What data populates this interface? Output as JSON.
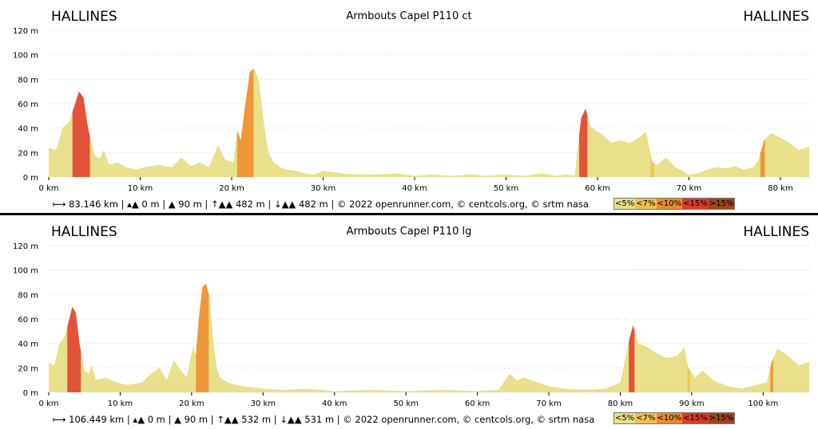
{
  "charts": [
    {
      "title": "Armbouts Capel P110 ct",
      "start_label": "HALLINES",
      "end_label": "HALLINES",
      "stats": {
        "distance": "83.146 km",
        "min_alt": "0 m",
        "max_alt": "90 m",
        "ascent": "482 m",
        "descent": "482 m",
        "credits": "© 2022 openrunner.com, © centcols.org, © srtm nasa"
      }
    },
    {
      "title": "Armbouts Capel P110 lg",
      "start_label": "HALLINES",
      "end_label": "HALLINES",
      "stats": {
        "distance": "106.449 km",
        "min_alt": "0 m",
        "max_alt": "90 m",
        "ascent": "532 m",
        "descent": "531 m",
        "credits": "© 2022 openrunner.com, © centcols.org, © srtm nasa"
      }
    }
  ],
  "legend": {
    "items": [
      "<5%",
      "<7%",
      "<10%",
      "<15%",
      ">15%"
    ],
    "colors": [
      "#e8e08a",
      "#f2c14e",
      "#ee8a2a",
      "#e03a2a",
      "#a0441c"
    ]
  },
  "chart_data": [
    {
      "type": "area",
      "title": "Armbouts Capel P110 ct",
      "xlabel": "",
      "ylabel": "",
      "x_unit": "km",
      "y_unit": "m",
      "xlim": [
        0,
        83.146
      ],
      "ylim": [
        0,
        120
      ],
      "x_ticks": [
        "0 km",
        "10 km",
        "20 km",
        "30 km",
        "40 km",
        "50 km",
        "60 km",
        "70 km",
        "80 km"
      ],
      "y_ticks": [
        "0 m",
        "20 m",
        "40 m",
        "60 m",
        "80 m",
        "100 m",
        "120 m"
      ],
      "grid": true,
      "series": [
        {
          "x": [
            0,
            0.8,
            1.5,
            2.2,
            2.8,
            3.3,
            3.8,
            4.3,
            5.0,
            5.6,
            6.0,
            6.6,
            7.5,
            8.5,
            9.5,
            10.5,
            12,
            13.5,
            14.5,
            15.5,
            16.5,
            17.5,
            18.5,
            19.3,
            20.2,
            20.6,
            21.0,
            21.5,
            22.0,
            22.5,
            23.0,
            23.5,
            24.0,
            24.6,
            25.3,
            26,
            27,
            28,
            29,
            30,
            32,
            34,
            36,
            38,
            40,
            42,
            44,
            46,
            48,
            50,
            52,
            54,
            55.5,
            56.5,
            57.5,
            58.2,
            58.7,
            59.2,
            59.8,
            60.5,
            61.5,
            62.5,
            63.5,
            64.5,
            65.3,
            66.0,
            66.5,
            67.5,
            68.5,
            69.3,
            70,
            71,
            72,
            73,
            74,
            75,
            76,
            77,
            77.6,
            78.2,
            79,
            80,
            81,
            82,
            83.146
          ],
          "y": [
            24,
            22,
            40,
            45,
            58,
            70,
            65,
            40,
            18,
            15,
            22,
            10,
            12,
            8,
            6,
            8,
            10,
            8,
            16,
            9,
            12,
            8,
            26,
            14,
            12,
            38,
            30,
            60,
            86,
            89,
            78,
            45,
            20,
            12,
            8,
            6,
            5,
            3,
            2,
            5,
            3,
            2,
            2,
            3,
            1,
            2,
            1,
            2,
            1,
            2,
            1,
            3,
            1,
            2,
            1,
            48,
            56,
            42,
            38,
            35,
            28,
            30,
            28,
            32,
            37,
            12,
            10,
            16,
            8,
            5,
            2,
            3,
            6,
            8,
            7,
            9,
            6,
            8,
            14,
            30,
            36,
            32,
            28,
            22,
            25
          ],
          "steep_segments_km": [
            [
              2.6,
              4.5,
              "#e03a2a"
            ],
            [
              20.6,
              22.4,
              "#ee8a2a"
            ],
            [
              58.0,
              58.9,
              "#e03a2a"
            ],
            [
              65.8,
              66.2,
              "#f2c14e"
            ],
            [
              77.8,
              78.3,
              "#ee8a2a"
            ]
          ]
        }
      ]
    },
    {
      "type": "area",
      "title": "Armbouts Capel P110 lg",
      "xlabel": "",
      "ylabel": "",
      "x_unit": "km",
      "y_unit": "m",
      "xlim": [
        0,
        106.449
      ],
      "ylim": [
        0,
        120
      ],
      "x_ticks": [
        "0 km",
        "10 km",
        "20 km",
        "30 km",
        "40 km",
        "50 km",
        "60 km",
        "70 km",
        "80 km",
        "90 km",
        "100 km"
      ],
      "y_ticks": [
        "0 m",
        "20 m",
        "40 m",
        "60 m",
        "80 m",
        "100 m",
        "120 m"
      ],
      "grid": true,
      "series": [
        {
          "x": [
            0,
            0.8,
            1.5,
            2.2,
            2.8,
            3.3,
            3.8,
            4.3,
            5.0,
            5.6,
            6.0,
            6.6,
            8,
            9.5,
            11,
            13,
            14.5,
            15.5,
            16.5,
            17.5,
            18.5,
            19.3,
            20.2,
            20.6,
            21.0,
            21.5,
            22.0,
            22.5,
            23.0,
            23.5,
            24.0,
            25,
            27,
            30,
            33,
            36,
            40,
            45,
            50,
            55,
            60,
            63,
            64.5,
            65.5,
            66.5,
            67.5,
            68.5,
            70,
            72,
            75,
            78,
            80,
            81.2,
            81.8,
            82.5,
            83.5,
            85,
            86.5,
            88,
            89,
            89.5,
            90.5,
            91.5,
            93,
            95,
            97,
            99,
            100.5,
            101.2,
            102,
            103.5,
            105,
            106.449
          ],
          "y": [
            24,
            22,
            40,
            45,
            58,
            70,
            65,
            40,
            18,
            15,
            22,
            10,
            12,
            8,
            6,
            8,
            16,
            20,
            10,
            26,
            18,
            12,
            38,
            30,
            60,
            86,
            89,
            78,
            45,
            20,
            12,
            8,
            5,
            3,
            2,
            3,
            1,
            2,
            1,
            2,
            1,
            2,
            15,
            10,
            12,
            10,
            8,
            5,
            3,
            2,
            3,
            8,
            42,
            55,
            40,
            38,
            32,
            28,
            30,
            37,
            20,
            12,
            18,
            10,
            5,
            3,
            6,
            8,
            25,
            36,
            30,
            22,
            25
          ],
          "steep_segments_km": [
            [
              2.6,
              4.5,
              "#e03a2a"
            ],
            [
              20.6,
              22.4,
              "#ee8a2a"
            ],
            [
              81.2,
              82.0,
              "#e03a2a"
            ],
            [
              89.4,
              89.8,
              "#f2c14e"
            ],
            [
              101.0,
              101.4,
              "#ee8a2a"
            ]
          ]
        }
      ]
    }
  ]
}
